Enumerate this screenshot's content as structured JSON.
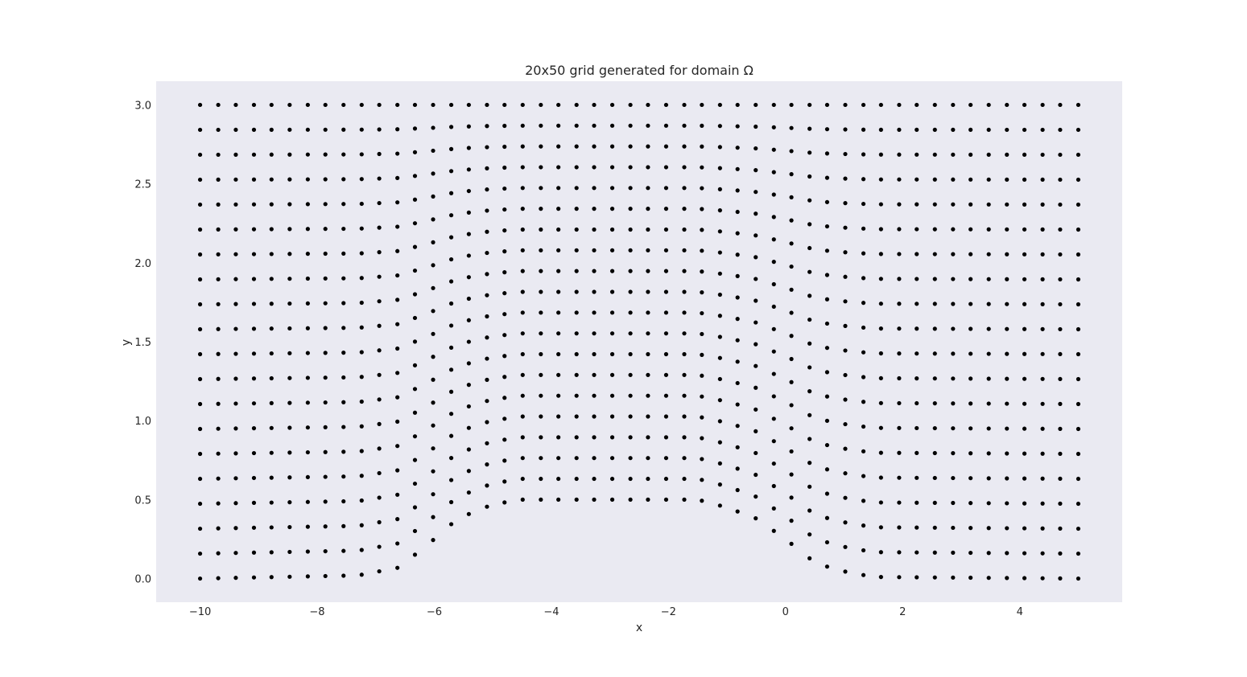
{
  "chart_data": {
    "type": "scatter",
    "title": "20x50 grid generated for domain Ω",
    "xlabel": "x",
    "ylabel": "y",
    "xlim": [
      -10.75,
      5.75
    ],
    "ylim": [
      -0.15,
      3.15
    ],
    "xticks": [
      -10,
      -8,
      -6,
      -4,
      -2,
      0,
      2,
      4
    ],
    "xtick_labels": [
      "−10",
      "−8",
      "−6",
      "−4",
      "−2",
      "0",
      "2",
      "4"
    ],
    "yticks": [
      0.0,
      0.5,
      1.0,
      1.5,
      2.0,
      2.5,
      3.0
    ],
    "ytick_labels": [
      "0.0",
      "0.5",
      "1.0",
      "1.5",
      "2.0",
      "2.5",
      "3.0"
    ],
    "grid": false,
    "background_color": "#eaeaf2",
    "marker_color": "#000000",
    "grid_size": {
      "rows": 20,
      "cols": 50
    },
    "domain": {
      "x_range": [
        -10,
        5
      ],
      "y_range": [
        0,
        3
      ],
      "bottom_boundary": [
        [
          -10,
          0
        ],
        [
          -7.3,
          0.02
        ],
        [
          -6.6,
          0.07
        ],
        [
          -6.0,
          0.25
        ],
        [
          -5.6,
          0.38
        ],
        [
          -5.0,
          0.47
        ],
        [
          -4.5,
          0.5
        ],
        [
          -1.5,
          0.5
        ],
        [
          -1.0,
          0.45
        ],
        [
          -0.5,
          0.38
        ],
        [
          0.0,
          0.25
        ],
        [
          0.4,
          0.13
        ],
        [
          0.8,
          0.06
        ],
        [
          1.5,
          0.01
        ],
        [
          5,
          0
        ]
      ]
    },
    "x_columns": [
      -10.0,
      -9.69,
      -9.39,
      -9.08,
      -8.78,
      -8.47,
      -8.16,
      -7.86,
      -7.55,
      -7.24,
      -6.94,
      -6.63,
      -6.33,
      -6.02,
      -5.71,
      -5.41,
      -5.1,
      -4.8,
      -4.49,
      -4.18,
      -3.88,
      -3.57,
      -3.27,
      -2.96,
      -2.65,
      -2.35,
      -2.04,
      -1.73,
      -1.43,
      -1.12,
      -0.82,
      -0.51,
      -0.2,
      0.1,
      0.41,
      0.71,
      1.02,
      1.33,
      1.63,
      1.94,
      2.24,
      2.55,
      2.86,
      3.16,
      3.47,
      3.78,
      4.08,
      4.39,
      4.69,
      5.0
    ]
  }
}
